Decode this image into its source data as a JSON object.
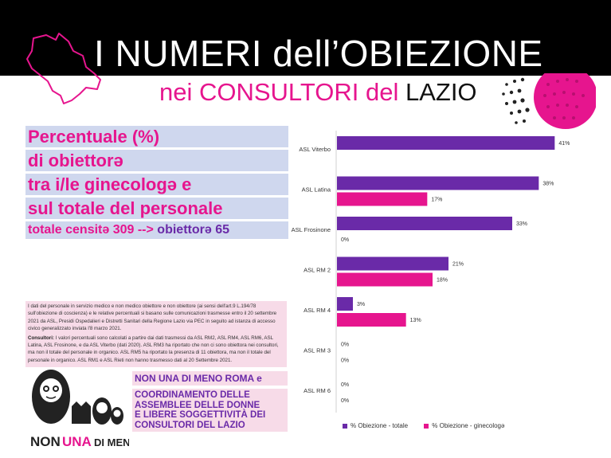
{
  "header": {
    "title_line1": "I NUMERI dell’OBIEZIONE",
    "title_line2_part1": "nei CONSULTORI del",
    "title_line2_part2": "LAZIO"
  },
  "stats": {
    "line1": "Percentuale (%)",
    "line2": "di obiettorə",
    "line3": "tra i/le ginecologə e",
    "line4": "sul totale del personale",
    "line5_a": "totale censitə 309 -->",
    "line5_b": "obiettorə 65"
  },
  "notes": {
    "paragraph1": "I dati del personale in servizio medico e non medico obiettore e non obiettore (ai sensi dell'art.9 L.194/78 sull'obiezione di coscienza) e le relative percentuali si basano sulle comunicazioni trasmesse entro il 20 settembre 2021 da ASL, Presidi Ospedalieri e Distretti Sanitari della Regione Lazio via PEC in seguito ad istanza di accesso civico generalizzato inviata l'8 marzo 2021.",
    "paragraph2_label": "Consultori:",
    "paragraph2": " I valori percentuali sono calcolati a partire dai dati trasmessi da ASL RM2, ASL RM4, ASL RM6, ASL Latina, ASL Frosinone, e da ASL Viterbo (dati 2020). ASL RM3 ha riportato che non ci sono obiettora nei consultori, ma non il totale del personale in organico. ASL RM5 ha riportato la presenza di 11 obiettora, ma non il totale del personale in organico. ASL RM1 e ASL Rieti non hanno trasmesso dati al 20 Settembre 2021."
  },
  "logo": {
    "text_left": "NON",
    "text_mid": "UNA",
    "text_right": "DI MENO"
  },
  "org": {
    "line1": "NON UNA DI MENO ROMA e",
    "line2": "COORDINAMENTO DELLE\nASSEMBLEE DELLE DONNE\nE LIBERE SOGGETTIVITÀ DEI\nCONSULTORI DEL LAZIO"
  },
  "colors": {
    "pink": "#e6158e",
    "purple": "#6a2aa8",
    "lavender": "#cfd7ee",
    "lightpink": "#f7dbe8"
  },
  "chart_data": {
    "type": "bar",
    "orientation": "horizontal",
    "categories": [
      "ASL Viterbo",
      "ASL Latina",
      "ASL Frosinone",
      "ASL RM 2",
      "ASL RM 4",
      "ASL RM 3",
      "ASL RM 6"
    ],
    "series": [
      {
        "name": "% Obiezione - totale",
        "color": "#6a2aa8",
        "values": [
          41,
          38,
          33,
          21,
          3,
          0,
          0
        ],
        "labels": [
          "41%",
          "38%",
          "33%",
          "21%",
          "3%",
          "0%",
          "0%"
        ]
      },
      {
        "name": "% Obiezione - ginecologə",
        "color": "#e6158e",
        "values": [
          null,
          17,
          0,
          18,
          13,
          0,
          0
        ],
        "labels": [
          "",
          "17%",
          "0%",
          "18%",
          "13%",
          "0%",
          "0%"
        ]
      }
    ],
    "xlim": [
      0,
      45
    ],
    "grid": false,
    "legend_position": "bottom"
  }
}
